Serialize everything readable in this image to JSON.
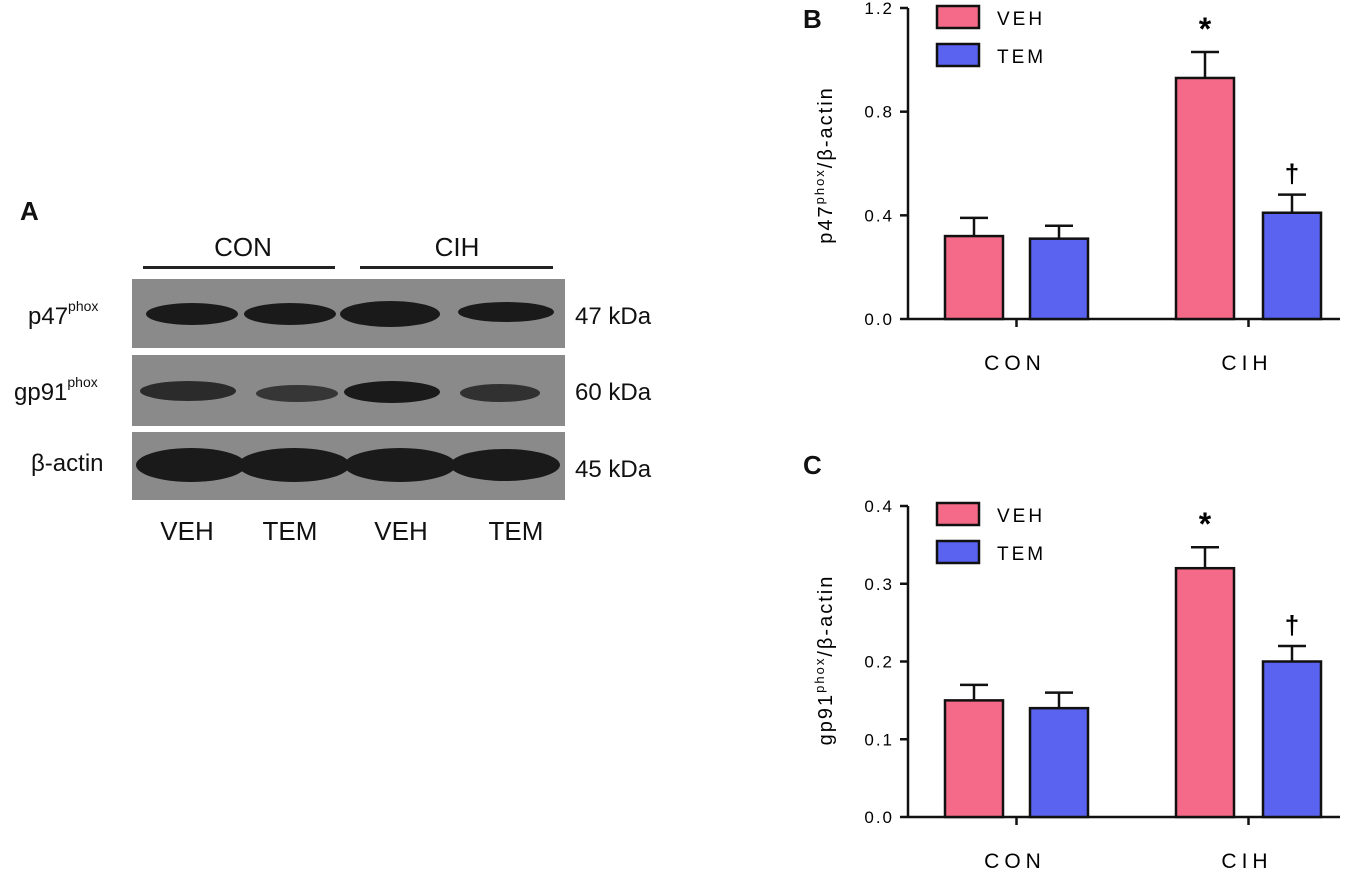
{
  "panels": {
    "a": {
      "letter": "A",
      "groups": [
        "CON",
        "CIH"
      ],
      "rows": [
        {
          "label": "p47",
          "sup": "phox",
          "kda": "47 kDa"
        },
        {
          "label": "gp91",
          "sup": "phox",
          "kda": "60 kDa"
        },
        {
          "label": "β-actin",
          "sup": "",
          "kda": "45 kDa"
        }
      ],
      "lanes": [
        "VEH",
        "TEM",
        "VEH",
        "TEM"
      ]
    },
    "b": {
      "letter": "B"
    },
    "c": {
      "letter": "C"
    }
  },
  "colors": {
    "veh": "#f56a88",
    "tem": "#5a63f0",
    "axis": "#111111"
  },
  "chart_data": [
    {
      "type": "bar",
      "panel": "B",
      "categories": [
        "CON",
        "CIH"
      ],
      "series": [
        {
          "name": "VEH",
          "values": [
            0.32,
            0.93
          ],
          "errors": [
            0.07,
            0.1
          ]
        },
        {
          "name": "TEM",
          "values": [
            0.31,
            0.41
          ],
          "errors": [
            0.05,
            0.07
          ]
        }
      ],
      "ylabel_main": "p47",
      "ylabel_sup": "phox",
      "ylabel_rest": "/β-actin",
      "ylim": [
        0,
        1.2
      ],
      "yticks": [
        "0.0",
        "0.4",
        "0.8",
        "1.2"
      ],
      "annotations": [
        {
          "series": 0,
          "category": 1,
          "text": "*"
        },
        {
          "series": 1,
          "category": 1,
          "text": "†"
        }
      ],
      "legend": "top-left"
    },
    {
      "type": "bar",
      "panel": "C",
      "categories": [
        "CON",
        "CIH"
      ],
      "series": [
        {
          "name": "VEH",
          "values": [
            0.15,
            0.32
          ],
          "errors": [
            0.02,
            0.027
          ]
        },
        {
          "name": "TEM",
          "values": [
            0.14,
            0.2
          ],
          "errors": [
            0.02,
            0.02
          ]
        }
      ],
      "ylabel_main": "gp91",
      "ylabel_sup": "phox",
      "ylabel_rest": "/β-actin",
      "ylim": [
        0,
        0.4
      ],
      "yticks": [
        "0.0",
        "0.1",
        "0.2",
        "0.3",
        "0.4"
      ],
      "annotations": [
        {
          "series": 0,
          "category": 1,
          "text": "*"
        },
        {
          "series": 1,
          "category": 1,
          "text": "†"
        }
      ],
      "legend": "top-left"
    }
  ]
}
